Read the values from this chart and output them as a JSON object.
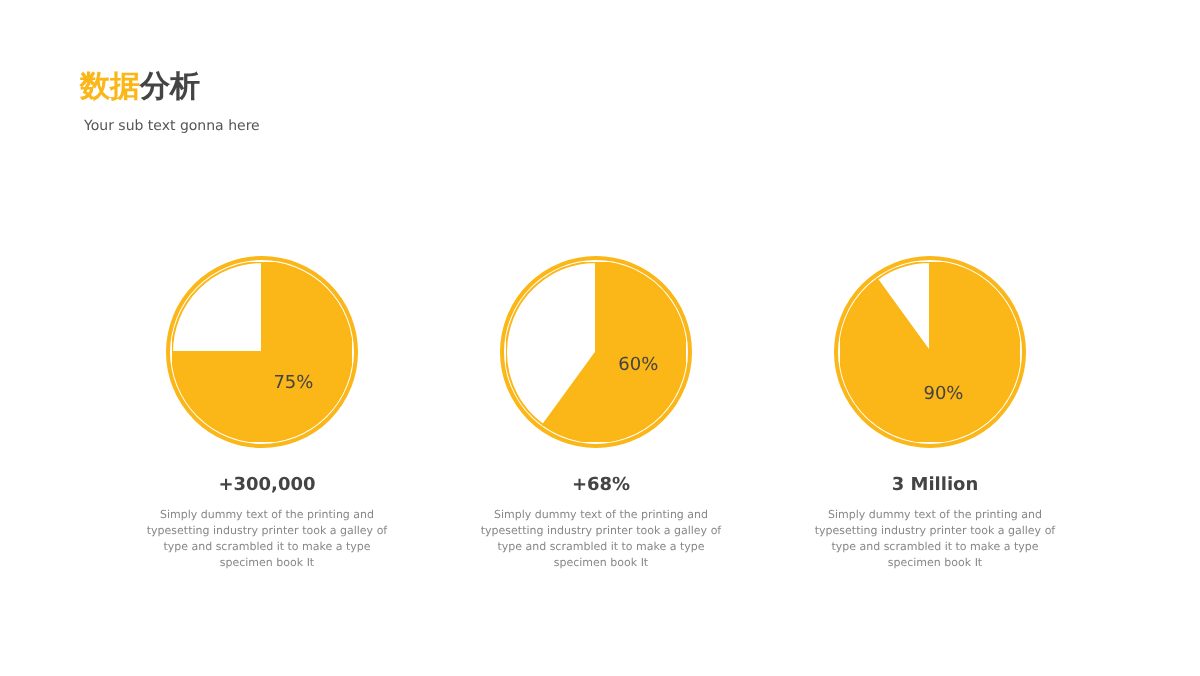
{
  "chart_data": [
    {
      "type": "pie",
      "title": "数据分析",
      "subtitle": "Your sub text gonna here",
      "categories": [
        null,
        null
      ],
      "values": [
        75,
        25
      ],
      "colors": [
        "#fbb617",
        "#ffffff"
      ],
      "value_labels": [
        "75%",
        null
      ],
      "annotations": [
        "+300,000",
        "Simply dummy text of the printing and typesetting industry printer took a galley of type and scrambled it to make a type specimen book It"
      ]
    },
    {
      "type": "pie",
      "categories": [
        null,
        null
      ],
      "values": [
        60,
        40
      ],
      "colors": [
        "#fbb617",
        "#ffffff"
      ],
      "value_labels": [
        "60%",
        null
      ],
      "annotations": [
        "+68%",
        "Simply dummy text of the printing and typesetting industry printer took a galley of type and scrambled it to make a type specimen book It"
      ]
    },
    {
      "type": "pie",
      "categories": [
        null,
        null
      ],
      "values": [
        90,
        10
      ],
      "colors": [
        "#fbb617",
        "#ffffff"
      ],
      "value_labels": [
        "90%",
        null
      ],
      "annotations": [
        "3 Million",
        "Simply dummy text of the printing and typesetting industry printer took a galley of type and scrambled it to make a type specimen book It"
      ]
    }
  ]
}
